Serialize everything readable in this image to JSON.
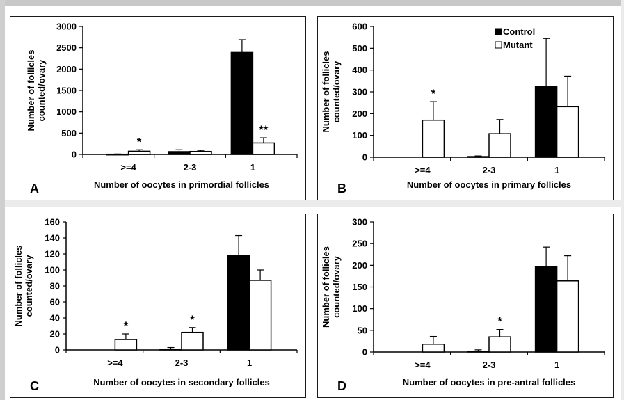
{
  "colors": {
    "control": "#000000",
    "mutant": "#ffffff",
    "outline": "#000000"
  },
  "legend": {
    "control": "Control",
    "mutant": "Mutant"
  },
  "chart_data": [
    {
      "type": "bar",
      "panel": "A",
      "xlabel": "Number of oocytes in primordial follicles",
      "ylabel": [
        "Number of follicles",
        "counted/ovary"
      ],
      "ylim": [
        0,
        3000
      ],
      "yticks": [
        "0",
        "500",
        "1000",
        "1500",
        "2000",
        "2500",
        "3000"
      ],
      "categories": [
        ">=4",
        "2-3",
        "1"
      ],
      "series": [
        {
          "name": "Control",
          "values": [
            5,
            65,
            2390
          ],
          "errors": [
            5,
            45,
            300
          ]
        },
        {
          "name": "Mutant",
          "values": [
            75,
            70,
            270
          ],
          "errors": [
            35,
            25,
            120
          ]
        }
      ],
      "annotations": [
        {
          "category": 0,
          "series": 1,
          "text": "*"
        },
        {
          "category": 2,
          "series": 1,
          "text": "**"
        }
      ]
    },
    {
      "type": "bar",
      "panel": "B",
      "xlabel": "Number of oocytes in primary follicles",
      "ylabel": [
        "Number of follicles",
        "counted/ovary"
      ],
      "ylim": [
        0,
        600
      ],
      "yticks": [
        "0",
        "100",
        "200",
        "300",
        "400",
        "500",
        "600"
      ],
      "categories": [
        ">=4",
        "2-3",
        "1"
      ],
      "series": [
        {
          "name": "Control",
          "values": [
            0,
            3,
            325
          ],
          "errors": [
            0,
            3,
            220
          ]
        },
        {
          "name": "Mutant",
          "values": [
            170,
            108,
            232
          ],
          "errors": [
            85,
            65,
            140
          ]
        }
      ],
      "annotations": [
        {
          "category": 0,
          "series": 1,
          "text": "*"
        }
      ],
      "legend": true
    },
    {
      "type": "bar",
      "panel": "C",
      "xlabel": "Number of oocytes in secondary follicles",
      "ylabel": [
        "Number of follicles",
        "counted/ovary"
      ],
      "ylim": [
        0,
        160
      ],
      "yticks": [
        "0",
        "20",
        "40",
        "60",
        "80",
        "100",
        "120",
        "140",
        "160"
      ],
      "categories": [
        ">=4",
        "2-3",
        "1"
      ],
      "series": [
        {
          "name": "Control",
          "values": [
            0,
            1,
            118
          ],
          "errors": [
            0,
            2,
            25
          ]
        },
        {
          "name": "Mutant",
          "values": [
            13,
            22,
            87
          ],
          "errors": [
            7,
            6,
            13
          ]
        }
      ],
      "annotations": [
        {
          "category": 0,
          "series": 1,
          "text": "*"
        },
        {
          "category": 1,
          "series": 1,
          "text": "*"
        }
      ]
    },
    {
      "type": "bar",
      "panel": "D",
      "xlabel": "Number of oocytes in pre-antral follicles",
      "ylabel": [
        "Number of follicles",
        "counted/ovary"
      ],
      "ylim": [
        0,
        300
      ],
      "yticks": [
        "0",
        "50",
        "100",
        "150",
        "200",
        "250",
        "300"
      ],
      "categories": [
        ">=4",
        "2-3",
        "1"
      ],
      "series": [
        {
          "name": "Control",
          "values": [
            0,
            2,
            197
          ],
          "errors": [
            0,
            3,
            45
          ]
        },
        {
          "name": "Mutant",
          "values": [
            18,
            35,
            164
          ],
          "errors": [
            18,
            17,
            58
          ]
        }
      ],
      "annotations": [
        {
          "category": 1,
          "series": 1,
          "text": "*"
        }
      ]
    }
  ]
}
